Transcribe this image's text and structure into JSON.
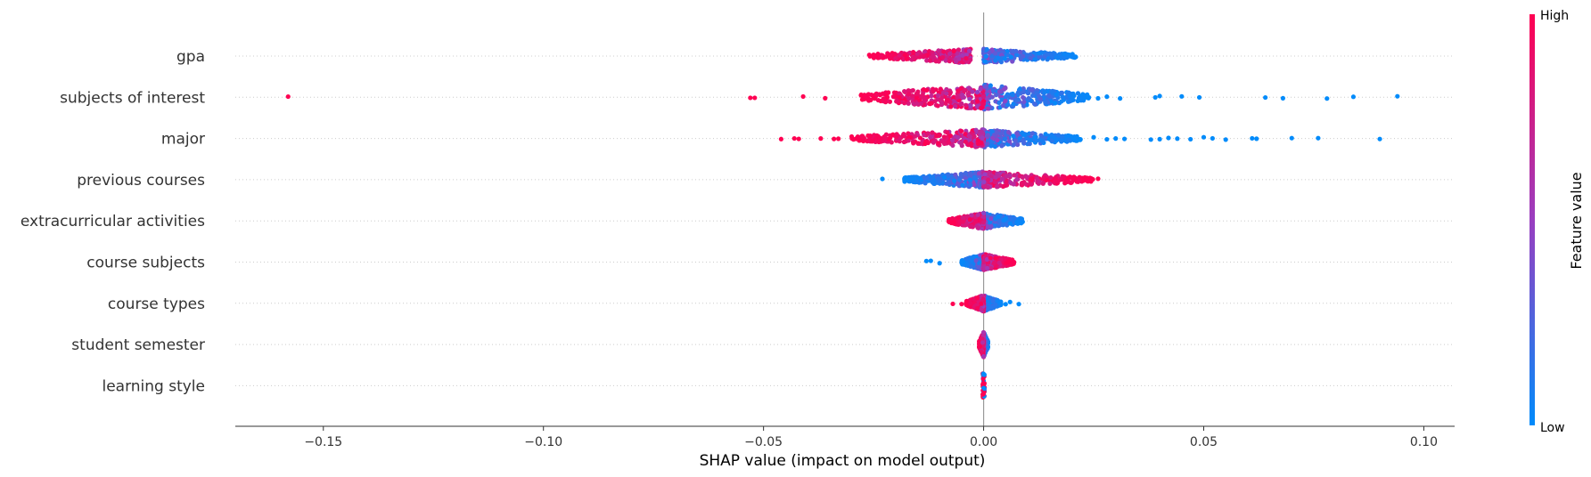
{
  "chart_data": {
    "type": "scatter",
    "subtype": "shap-beeswarm",
    "title": "",
    "xlabel": "SHAP value (impact on model output)",
    "ylabel": "",
    "xlim": [
      -0.17,
      0.107
    ],
    "xticks": [
      -0.15,
      -0.1,
      -0.05,
      0.0,
      0.05,
      0.1
    ],
    "xtick_labels": [
      "−0.15",
      "−0.10",
      "−0.05",
      "0.00",
      "0.05",
      "0.10"
    ],
    "grid": false,
    "colors": {
      "low": "#008bfb",
      "mid": "#9a3ec0",
      "high": "#ff0052",
      "zero_line": "#999999",
      "row_line": "#cccccc"
    },
    "colorbar": {
      "label": "Feature value",
      "high_label": "High",
      "low_label": "Low",
      "position": "right"
    },
    "features": [
      {
        "name": "gpa",
        "core": {
          "low_side": [
            0.0,
            0.021
          ],
          "high_side": [
            -0.026,
            -0.003
          ],
          "density_halfwidth": 8
        },
        "outliers": []
      },
      {
        "name": "subjects of interest",
        "core": {
          "low_side": [
            0.0,
            0.024
          ],
          "high_side": [
            -0.028,
            0.0
          ],
          "density_halfwidth": 14
        },
        "outliers": [
          {
            "x": -0.158,
            "v": 1
          },
          {
            "x": -0.053,
            "v": 1
          },
          {
            "x": -0.052,
            "v": 1
          },
          {
            "x": -0.041,
            "v": 1
          },
          {
            "x": -0.036,
            "v": 1
          },
          {
            "x": 0.026,
            "v": 0
          },
          {
            "x": 0.028,
            "v": 0
          },
          {
            "x": 0.031,
            "v": 0
          },
          {
            "x": 0.039,
            "v": 0
          },
          {
            "x": 0.04,
            "v": 0
          },
          {
            "x": 0.045,
            "v": 0
          },
          {
            "x": 0.049,
            "v": 0
          },
          {
            "x": 0.064,
            "v": 0
          },
          {
            "x": 0.068,
            "v": 0
          },
          {
            "x": 0.078,
            "v": 0
          },
          {
            "x": 0.084,
            "v": 0
          },
          {
            "x": 0.094,
            "v": 0
          }
        ]
      },
      {
        "name": "major",
        "core": {
          "low_side": [
            0.0,
            0.022
          ],
          "high_side": [
            -0.03,
            0.0
          ],
          "density_halfwidth": 10
        },
        "outliers": [
          {
            "x": -0.046,
            "v": 1
          },
          {
            "x": -0.043,
            "v": 1
          },
          {
            "x": -0.042,
            "v": 1
          },
          {
            "x": -0.037,
            "v": 1
          },
          {
            "x": -0.034,
            "v": 1
          },
          {
            "x": -0.033,
            "v": 1
          },
          {
            "x": 0.022,
            "v": 0
          },
          {
            "x": 0.025,
            "v": 0
          },
          {
            "x": 0.028,
            "v": 0
          },
          {
            "x": 0.03,
            "v": 0
          },
          {
            "x": 0.032,
            "v": 0
          },
          {
            "x": 0.038,
            "v": 0
          },
          {
            "x": 0.04,
            "v": 0
          },
          {
            "x": 0.042,
            "v": 0
          },
          {
            "x": 0.044,
            "v": 0
          },
          {
            "x": 0.047,
            "v": 0
          },
          {
            "x": 0.05,
            "v": 0
          },
          {
            "x": 0.052,
            "v": 0
          },
          {
            "x": 0.055,
            "v": 0
          },
          {
            "x": 0.061,
            "v": 0
          },
          {
            "x": 0.062,
            "v": 0
          },
          {
            "x": 0.07,
            "v": 0
          },
          {
            "x": 0.076,
            "v": 0
          },
          {
            "x": 0.09,
            "v": 0
          }
        ]
      },
      {
        "name": "previous courses",
        "core": {
          "low_side": [
            -0.018,
            0.0
          ],
          "high_side": [
            0.0,
            0.025
          ],
          "density_halfwidth": 9
        },
        "outliers": [
          {
            "x": -0.023,
            "v": 0
          },
          {
            "x": 0.026,
            "v": 1
          }
        ]
      },
      {
        "name": "extracurricular activities",
        "core": {
          "low_side": [
            0.0,
            0.009
          ],
          "high_side": [
            -0.008,
            0.0
          ],
          "density_halfwidth": 9
        },
        "outliers": []
      },
      {
        "name": "course subjects",
        "core": {
          "low_side": [
            -0.005,
            0.0
          ],
          "high_side": [
            0.0,
            0.007
          ],
          "density_halfwidth": 9
        },
        "outliers": [
          {
            "x": -0.013,
            "v": 0
          },
          {
            "x": -0.012,
            "v": 0
          },
          {
            "x": -0.01,
            "v": 0
          }
        ]
      },
      {
        "name": "course types",
        "core": {
          "low_side": [
            0.0,
            0.004
          ],
          "high_side": [
            -0.004,
            0.0
          ],
          "density_halfwidth": 9
        },
        "outliers": [
          {
            "x": -0.007,
            "v": 1
          },
          {
            "x": -0.005,
            "v": 1
          },
          {
            "x": 0.005,
            "v": 0
          },
          {
            "x": 0.006,
            "v": 0
          },
          {
            "x": 0.008,
            "v": 0
          }
        ]
      },
      {
        "name": "student semester",
        "core": {
          "low_side": [
            0.0,
            0.001
          ],
          "high_side": [
            -0.001,
            0.0
          ],
          "density_halfwidth": 14
        },
        "outliers": []
      },
      {
        "name": "learning style",
        "core": {
          "low_side": [
            0.0,
            0.0
          ],
          "high_side": [
            0.0,
            0.0
          ],
          "density_halfwidth": 14
        },
        "outliers": []
      }
    ]
  }
}
